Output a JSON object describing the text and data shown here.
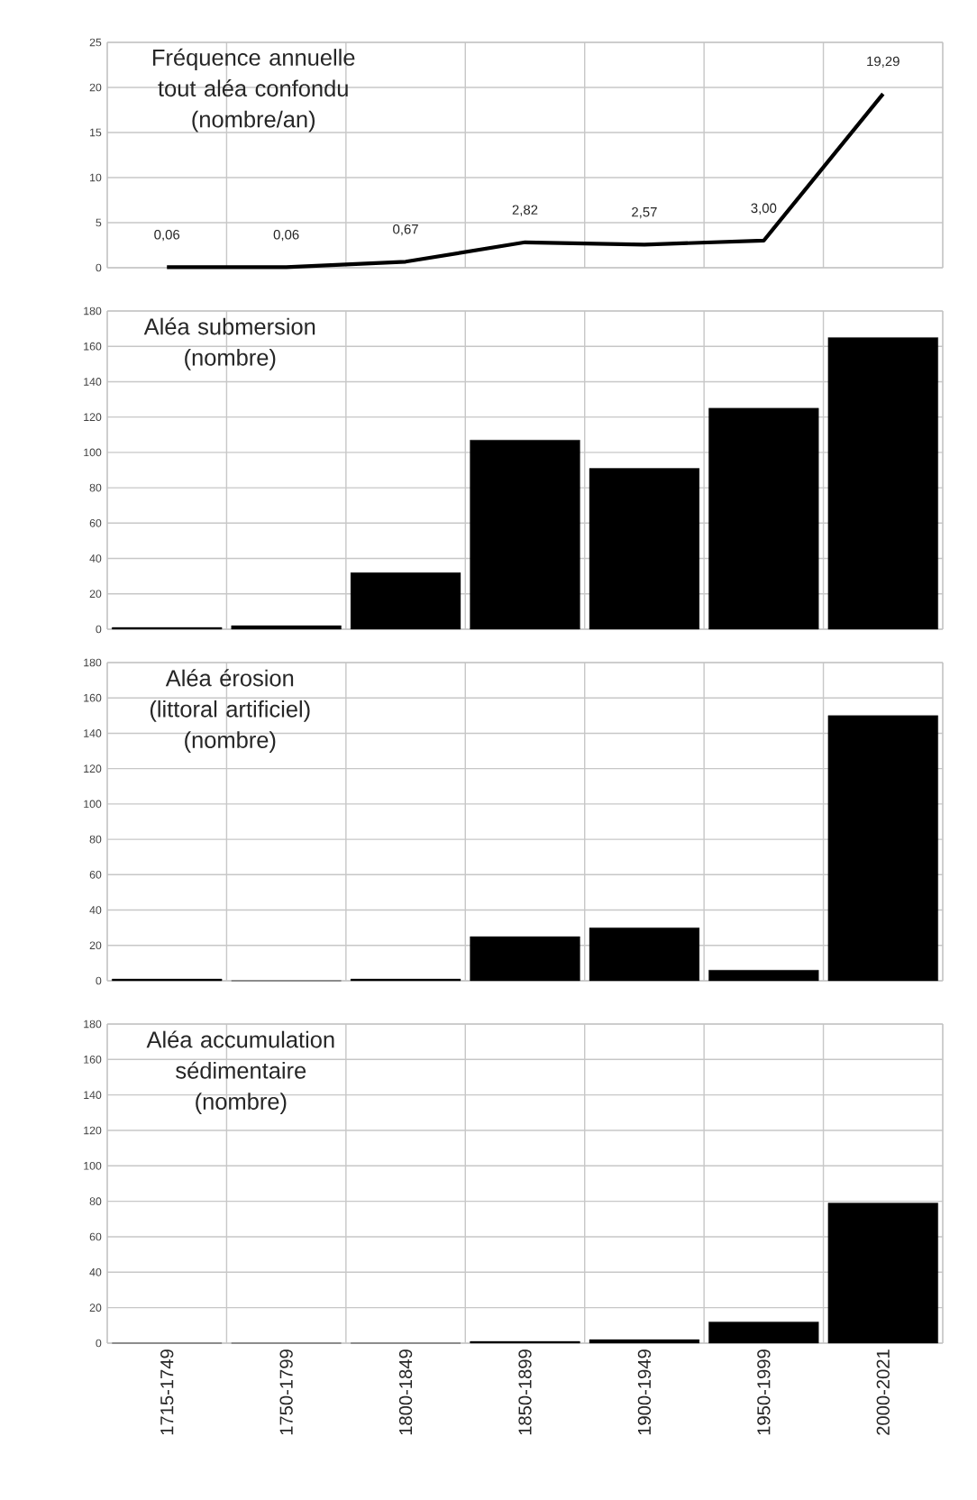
{
  "chart_data": [
    {
      "type": "line",
      "title": "Fréquence annuelle tout aléa confondu (nombre/an)",
      "categories": [
        null,
        null,
        null,
        null,
        null,
        null,
        null
      ],
      "values": [
        0.06,
        0.06,
        0.67,
        2.82,
        2.57,
        3.0,
        19.29
      ],
      "value_labels": [
        "0,06",
        "0,06",
        "0,67",
        "2,82",
        "2,57",
        "3,00",
        "19,29"
      ],
      "color": "#000000",
      "ylim": [
        0,
        25
      ],
      "yticks": [
        0,
        5,
        10,
        15,
        20,
        25
      ],
      "grid": true,
      "tick_labels": "y",
      "marker": "none"
    },
    {
      "type": "bar",
      "title": "Aléa submersion (nombre)",
      "categories": [
        null,
        null,
        null,
        null,
        null,
        null,
        null
      ],
      "values": [
        1,
        2,
        32,
        107,
        91,
        125,
        165
      ],
      "color": "#000000",
      "ylim": [
        0,
        180
      ],
      "yticks": [
        0,
        20,
        40,
        60,
        80,
        100,
        120,
        140,
        160,
        180
      ],
      "grid": true,
      "tick_labels": "y"
    },
    {
      "type": "bar",
      "title": "Aléa érosion (littoral artificiel) (nombre)",
      "categories": [
        null,
        null,
        null,
        null,
        null,
        null,
        null
      ],
      "values": [
        1,
        0,
        1,
        25,
        30,
        6,
        150
      ],
      "color": "#000000",
      "ylim": [
        0,
        180
      ],
      "yticks": [
        0,
        20,
        40,
        60,
        80,
        100,
        120,
        140,
        160,
        180
      ],
      "grid": true,
      "tick_labels": "y"
    },
    {
      "type": "bar",
      "title": "Aléa accumulation sédimentaire (nombre)",
      "categories": [
        "1715-1749",
        "1750-1799",
        "1800-1849",
        "1850-1899",
        "1900-1949",
        "1950-1999",
        "2000-2021"
      ],
      "values": [
        0,
        0,
        0,
        1,
        2,
        12,
        79
      ],
      "color": "#000000",
      "ylim": [
        0,
        180
      ],
      "yticks": [
        0,
        20,
        40,
        60,
        80,
        100,
        120,
        140,
        160,
        180
      ],
      "grid": true
    }
  ]
}
